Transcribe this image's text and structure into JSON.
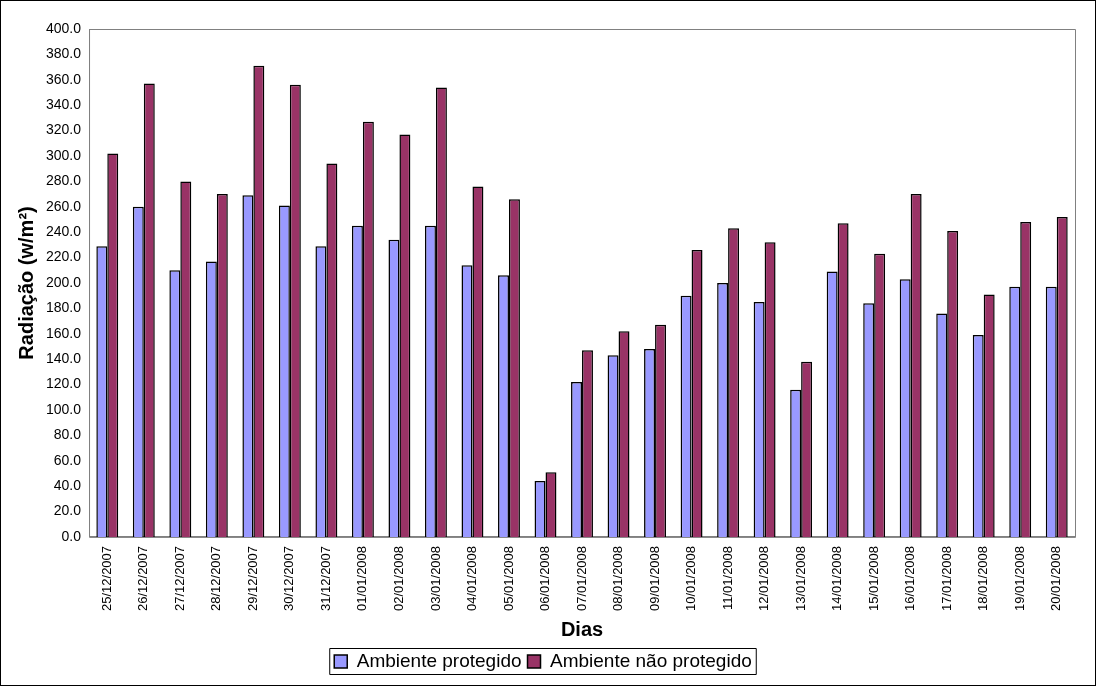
{
  "chart_data": {
    "type": "bar",
    "xlabel": "Dias",
    "ylabel": "Radiação (w/m²)",
    "categories": [
      "25/12/2007",
      "26/12/2007",
      "27/12/2007",
      "28/12/2007",
      "29/12/2007",
      "30/12/2007",
      "31/12/2007",
      "01/01/2008",
      "02/01/2008",
      "03/01/2008",
      "04/01/2008",
      "05/01/2008",
      "06/01/2008",
      "07/01/2008",
      "08/01/2008",
      "09/01/2008",
      "10/01/2008",
      "11/01/2008",
      "12/01/2008",
      "13/01/2008",
      "14/01/2008",
      "15/01/2008",
      "16/01/2008",
      "17/01/2008",
      "18/01/2008",
      "19/01/2008",
      "20/01/2008"
    ],
    "series": [
      {
        "name": "Ambiente protegido",
        "color": "#9999ff",
        "values": [
          229,
          260,
          210,
          217,
          269,
          261,
          229,
          245,
          234,
          245,
          214,
          206,
          44,
          122,
          143,
          148,
          190,
          200,
          185,
          116,
          209,
          184,
          203,
          176,
          159,
          197,
          197
        ]
      },
      {
        "name": "Ambiente não protegido",
        "color": "#993366",
        "values": [
          302,
          357,
          280,
          270,
          371,
          356,
          294,
          327,
          317,
          354,
          276,
          266,
          51,
          147,
          162,
          167,
          226,
          243,
          232,
          138,
          247,
          223,
          270,
          241,
          191,
          248,
          252
        ]
      }
    ],
    "ylim": [
      0,
      400
    ],
    "yticks": [
      {
        "value": 0,
        "label": "0.0"
      },
      {
        "value": 20,
        "label": "20.0"
      },
      {
        "value": 40,
        "label": "40.0"
      },
      {
        "value": 60,
        "label": "60.0"
      },
      {
        "value": 80,
        "label": "80.0"
      },
      {
        "value": 100,
        "label": "100.0"
      },
      {
        "value": 120,
        "label": "120.0"
      },
      {
        "value": 140,
        "label": "140.0"
      },
      {
        "value": 160,
        "label": "160.0"
      },
      {
        "value": 180,
        "label": "180.0"
      },
      {
        "value": 200,
        "label": "200.0"
      },
      {
        "value": 220,
        "label": "220.0"
      },
      {
        "value": 240,
        "label": "240.0"
      },
      {
        "value": 260,
        "label": "260.0"
      },
      {
        "value": 280,
        "label": "280.0"
      },
      {
        "value": 300,
        "label": "300.0"
      },
      {
        "value": 320,
        "label": "320.0"
      },
      {
        "value": 340,
        "label": "340.0"
      },
      {
        "value": 360,
        "label": "360.0"
      },
      {
        "value": 380,
        "label": "380.0"
      },
      {
        "value": 400,
        "label": "400.0"
      }
    ],
    "grid": false,
    "legend": "bottom"
  }
}
